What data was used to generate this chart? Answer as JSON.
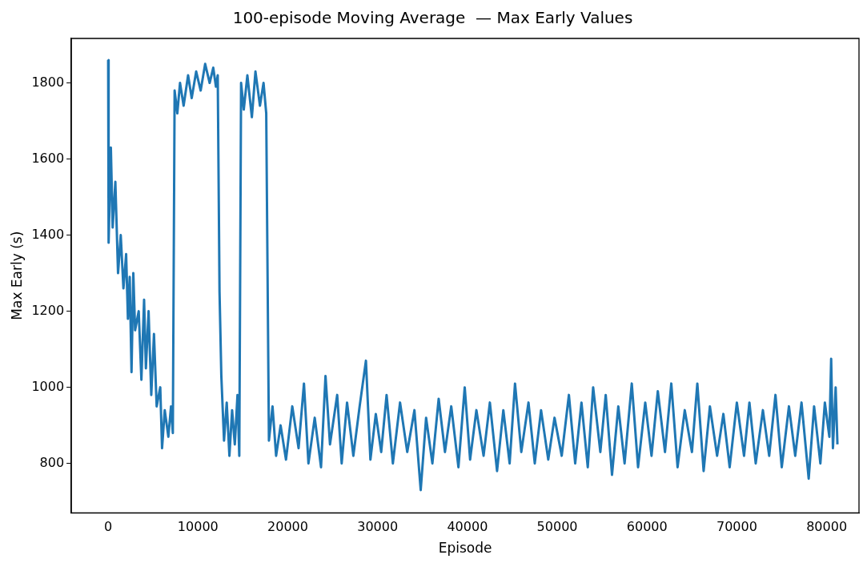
{
  "chart_data": {
    "type": "line",
    "title": "100-episode Moving Average  — Max Early Values",
    "xlabel": "Episode",
    "ylabel": "Max Early (s)",
    "xlim": [
      -4100,
      83600
    ],
    "xticks": [
      0,
      10000,
      20000,
      30000,
      40000,
      50000,
      60000,
      70000,
      80000
    ],
    "ylim": [
      670,
      1917
    ],
    "yticks": [
      800,
      1000,
      1200,
      1400,
      1600,
      1800
    ],
    "grid": false,
    "legend": false,
    "series": [
      {
        "color": "#1f77b4",
        "x": [
          0,
          50,
          300,
          500,
          800,
          1100,
          1400,
          1700,
          2000,
          2200,
          2400,
          2600,
          2800,
          3000,
          3400,
          3700,
          4000,
          4200,
          4500,
          4800,
          5100,
          5400,
          5800,
          6000,
          6300,
          6700,
          7000,
          7200,
          7400,
          7700,
          8000,
          8400,
          8900,
          9300,
          9800,
          10300,
          10800,
          11300,
          11700,
          12000,
          12200,
          12400,
          12600,
          12900,
          13200,
          13500,
          13800,
          14100,
          14400,
          14600,
          14800,
          15100,
          15500,
          16000,
          16400,
          16900,
          17300,
          17600,
          17900,
          18300,
          18700,
          19200,
          19800,
          20500,
          21200,
          21800,
          22300,
          23000,
          23700,
          24200,
          24700,
          25500,
          26000,
          26600,
          27300,
          28000,
          28700,
          29200,
          29800,
          30400,
          31000,
          31700,
          32500,
          33300,
          34100,
          34800,
          35400,
          36100,
          36800,
          37500,
          38200,
          39000,
          39700,
          40300,
          41000,
          41800,
          42500,
          43300,
          44000,
          44700,
          45300,
          46000,
          46800,
          47500,
          48200,
          49000,
          49700,
          50500,
          51300,
          52000,
          52700,
          53400,
          54000,
          54800,
          55400,
          56100,
          56800,
          57500,
          58300,
          59000,
          59800,
          60500,
          61200,
          62000,
          62700,
          63400,
          64200,
          65000,
          65600,
          66300,
          67000,
          67800,
          68500,
          69200,
          70000,
          70800,
          71400,
          72100,
          72900,
          73600,
          74300,
          75000,
          75800,
          76500,
          77200,
          78000,
          78600,
          79300,
          79800,
          80300,
          80500,
          80700,
          81000,
          81200
        ],
        "values": [
          1860,
          1380,
          1630,
          1420,
          1540,
          1300,
          1400,
          1260,
          1350,
          1180,
          1290,
          1040,
          1300,
          1150,
          1200,
          1020,
          1230,
          1050,
          1200,
          980,
          1140,
          950,
          1000,
          840,
          940,
          870,
          950,
          880,
          1780,
          1720,
          1800,
          1740,
          1820,
          1760,
          1830,
          1780,
          1850,
          1800,
          1840,
          1790,
          1820,
          1250,
          1030,
          860,
          960,
          820,
          940,
          850,
          980,
          820,
          1800,
          1730,
          1820,
          1710,
          1830,
          1740,
          1800,
          1720,
          860,
          950,
          820,
          900,
          810,
          950,
          840,
          1010,
          800,
          920,
          790,
          1030,
          850,
          980,
          800,
          960,
          820,
          950,
          1070,
          810,
          930,
          830,
          980,
          800,
          960,
          830,
          940,
          730,
          920,
          800,
          970,
          830,
          950,
          790,
          1000,
          810,
          940,
          820,
          960,
          780,
          940,
          800,
          1010,
          830,
          960,
          800,
          940,
          810,
          920,
          820,
          980,
          800,
          960,
          790,
          1000,
          830,
          980,
          770,
          950,
          800,
          1010,
          790,
          960,
          820,
          990,
          830,
          1010,
          790,
          940,
          830,
          1010,
          780,
          950,
          820,
          930,
          790,
          960,
          820,
          960,
          800,
          940,
          820,
          980,
          790,
          950,
          820,
          960,
          760,
          950,
          800,
          960,
          870,
          1075,
          840,
          1000,
          850
        ]
      }
    ]
  }
}
